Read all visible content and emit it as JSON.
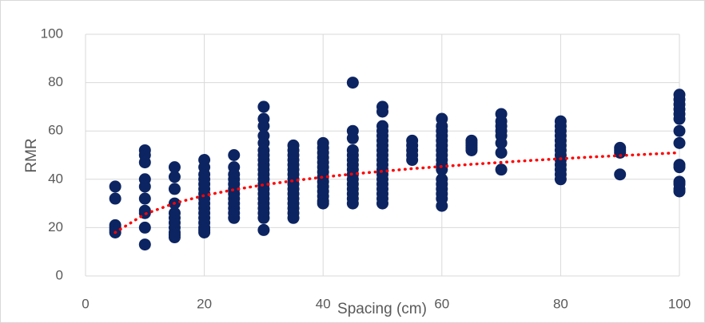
{
  "chart_data": {
    "type": "scatter",
    "x_label": "Spacing (cm)",
    "y_label": "RMR",
    "color": "#0c2461",
    "x": [
      5,
      5,
      5,
      5,
      5,
      5,
      10,
      10,
      10,
      10,
      10,
      10,
      10,
      10,
      10,
      10,
      15,
      15,
      15,
      15,
      15,
      15,
      15,
      15,
      15,
      15,
      15,
      20,
      20,
      20,
      20,
      20,
      20,
      20,
      20,
      20,
      20,
      20,
      20,
      20,
      20,
      20,
      20,
      25,
      25,
      25,
      25,
      25,
      25,
      25,
      25,
      25,
      25,
      25,
      25,
      30,
      30,
      30,
      30,
      30,
      30,
      30,
      30,
      30,
      30,
      30,
      30,
      30,
      30,
      30,
      30,
      30,
      30,
      30,
      30,
      30,
      35,
      35,
      35,
      35,
      35,
      35,
      35,
      35,
      35,
      35,
      35,
      35,
      35,
      35,
      35,
      35,
      40,
      40,
      40,
      40,
      40,
      40,
      40,
      40,
      40,
      40,
      40,
      40,
      40,
      40,
      45,
      45,
      45,
      45,
      45,
      45,
      45,
      45,
      45,
      45,
      45,
      45,
      45,
      45,
      45,
      50,
      50,
      50,
      50,
      50,
      50,
      50,
      50,
      50,
      50,
      50,
      50,
      50,
      50,
      50,
      50,
      50,
      50,
      50,
      55,
      55,
      55,
      55,
      55,
      60,
      60,
      60,
      60,
      60,
      60,
      60,
      60,
      60,
      60,
      60,
      60,
      60,
      60,
      60,
      60,
      60,
      65,
      65,
      65,
      65,
      65,
      70,
      70,
      70,
      70,
      70,
      70,
      70,
      70,
      80,
      80,
      80,
      80,
      80,
      80,
      80,
      80,
      80,
      80,
      80,
      80,
      80,
      90,
      90,
      90,
      90,
      100,
      100,
      100,
      100,
      100,
      100,
      100,
      100,
      100,
      100,
      100,
      100,
      100,
      100
    ],
    "values": [
      37,
      32,
      21,
      20,
      19,
      18,
      52,
      50,
      47,
      40,
      37,
      32,
      27,
      26,
      20,
      13,
      45,
      41,
      36,
      30,
      26,
      24,
      22,
      20,
      18,
      17,
      16,
      48,
      45,
      42,
      40,
      38,
      36,
      34,
      32,
      30,
      28,
      26,
      24,
      22,
      20,
      19,
      18,
      50,
      45,
      42,
      40,
      38,
      36,
      34,
      32,
      30,
      28,
      26,
      24,
      70,
      65,
      62,
      58,
      55,
      52,
      50,
      48,
      46,
      44,
      42,
      40,
      38,
      36,
      34,
      32,
      30,
      28,
      26,
      24,
      19,
      54,
      52,
      50,
      48,
      46,
      44,
      42,
      40,
      38,
      36,
      34,
      32,
      30,
      28,
      26,
      24,
      55,
      53,
      51,
      49,
      47,
      45,
      43,
      41,
      39,
      37,
      35,
      33,
      31,
      30,
      80,
      60,
      57,
      52,
      50,
      48,
      46,
      44,
      42,
      40,
      38,
      36,
      34,
      32,
      30,
      70,
      68,
      62,
      60,
      58,
      56,
      54,
      52,
      50,
      48,
      46,
      44,
      42,
      40,
      38,
      36,
      34,
      32,
      30,
      56,
      54,
      52,
      50,
      48,
      65,
      62,
      60,
      58,
      56,
      54,
      52,
      50,
      48,
      46,
      44,
      40,
      38,
      36,
      34,
      32,
      29,
      56,
      55,
      54,
      53,
      52,
      67,
      64,
      62,
      60,
      58,
      55,
      51,
      44,
      64,
      62,
      60,
      58,
      56,
      54,
      52,
      50,
      48,
      46,
      44,
      42,
      40,
      53,
      52,
      51,
      42,
      75,
      73,
      71,
      69,
      67,
      65,
      60,
      55,
      46,
      45,
      39,
      38,
      36,
      35
    ],
    "trendline": {
      "color": "#ff0000",
      "x": [
        5,
        10,
        15,
        20,
        25,
        30,
        35,
        40,
        45,
        50,
        55,
        60,
        65,
        70,
        75,
        80,
        85,
        90,
        95,
        100
      ],
      "values": [
        18.0,
        25.6,
        30.1,
        33.3,
        35.7,
        37.7,
        39.4,
        40.9,
        42.2,
        43.3,
        44.4,
        45.3,
        46.2,
        47.0,
        47.8,
        48.5,
        49.2,
        49.8,
        50.4,
        51.0
      ]
    },
    "xlim": [
      0,
      100
    ],
    "xticks": [
      0,
      20,
      40,
      60,
      80,
      100
    ],
    "ylim": [
      0,
      100
    ],
    "yticks": [
      0,
      20,
      40,
      60,
      80,
      100
    ],
    "grid": true
  }
}
